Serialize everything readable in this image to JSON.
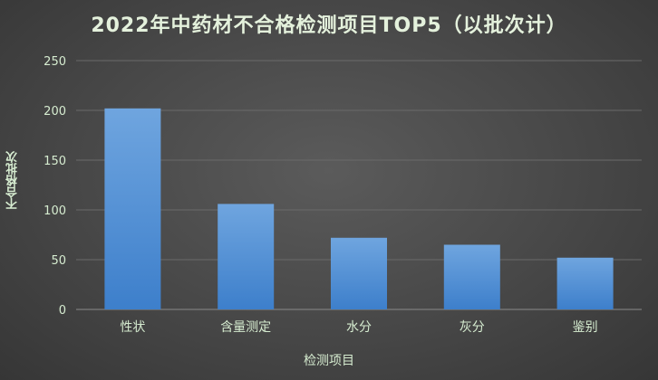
{
  "chart_data": {
    "type": "bar",
    "title": "2022年中药材不合格检测项目TOP5（以批次计）",
    "xlabel": "检测项目",
    "ylabel": "不合格批次",
    "categories": [
      "性状",
      "含量测定",
      "水分",
      "灰分",
      "鉴别"
    ],
    "values": [
      202,
      106,
      72,
      65,
      52
    ],
    "ylim": [
      0,
      250
    ],
    "yticks": [
      0,
      50,
      100,
      150,
      200,
      250
    ],
    "grid": true,
    "legend": "none",
    "colors": {
      "bar_top": "#6fa5df",
      "bar_bottom": "#3d7fcb",
      "grid": "#6a6a6a",
      "text": "#d6ecd0"
    }
  }
}
